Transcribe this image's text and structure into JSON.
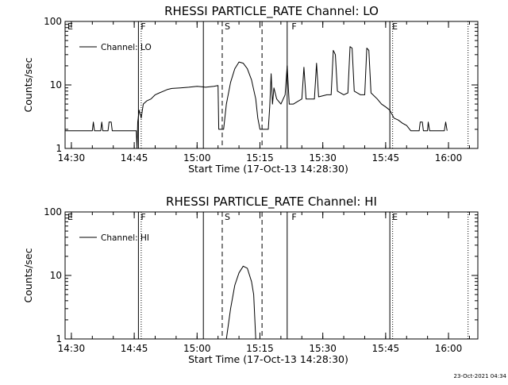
{
  "footer_timestamp": "23-Oct-2021 04:34",
  "chart_data": [
    {
      "type": "line",
      "title": "RHESSI PARTICLE_RATE Channel: LO",
      "xlabel": "Start Time (17-Oct-13 14:28:30)",
      "ylabel": "Counts/sec",
      "xlim": [
        "14:28:30",
        "16:07:00"
      ],
      "ylim": [
        1,
        100
      ],
      "yscale": "log",
      "x_ticks": [
        "14:30",
        "14:45",
        "15:00",
        "15:15",
        "15:30",
        "15:45",
        "16:00"
      ],
      "y_ticks": [
        "1",
        "10",
        "100"
      ],
      "legend": {
        "label": "Channel: LO",
        "position": "top-left"
      },
      "regions": [
        {
          "label": "E",
          "x": "14:28:30"
        },
        {
          "label": "F",
          "x": "14:46:00"
        },
        {
          "label": "S",
          "x": "15:06:00"
        },
        {
          "label": "F",
          "x": "15:22:00"
        },
        {
          "label": "E",
          "x": "15:46:00"
        }
      ],
      "vlines": [
        {
          "x": "14:46:00",
          "style": "solid"
        },
        {
          "x": "14:46:40",
          "style": "dotted"
        },
        {
          "x": "15:01:30",
          "style": "solid"
        },
        {
          "x": "15:06:00",
          "style": "dashed"
        },
        {
          "x": "15:15:30",
          "style": "dashed"
        },
        {
          "x": "15:21:30",
          "style": "solid"
        },
        {
          "x": "15:46:00",
          "style": "solid"
        },
        {
          "x": "15:46:40",
          "style": "dotted"
        },
        {
          "x": "16:04:40",
          "style": "dotted"
        }
      ],
      "series": [
        {
          "name": "Channel: LO",
          "points": [
            [
              "14:28:30",
              1.9
            ],
            [
              "14:35:00",
              1.9
            ],
            [
              "14:35:15",
              2.6
            ],
            [
              "14:35:30",
              1.9
            ],
            [
              "14:37:00",
              1.9
            ],
            [
              "14:37:15",
              2.6
            ],
            [
              "14:37:30",
              1.9
            ],
            [
              "14:38:45",
              1.9
            ],
            [
              "14:39:00",
              2.6
            ],
            [
              "14:39:30",
              2.6
            ],
            [
              "14:39:45",
              1.9
            ],
            [
              "14:45:30",
              1.9
            ],
            [
              "14:45:40",
              1.0
            ],
            [
              "14:45:50",
              2.6
            ],
            [
              "14:46:10",
              4.0
            ],
            [
              "14:46:40",
              3.0
            ],
            [
              "14:47:10",
              5.0
            ],
            [
              "14:48:00",
              5.6
            ],
            [
              "14:49:00",
              6.0
            ],
            [
              "14:50:00",
              7.0
            ],
            [
              "14:51:00",
              7.5
            ],
            [
              "14:52:00",
              8.0
            ],
            [
              "14:53:00",
              8.5
            ],
            [
              "14:54:00",
              8.8
            ],
            [
              "14:56:00",
              9.0
            ],
            [
              "14:58:00",
              9.2
            ],
            [
              "15:00:00",
              9.5
            ],
            [
              "15:01:30",
              9.3
            ],
            [
              "15:02:00",
              9.2
            ],
            [
              "15:04:00",
              9.5
            ],
            [
              "15:05:00",
              9.8
            ],
            [
              "15:05:10",
              2.0
            ],
            [
              "15:06:00",
              2.0
            ],
            [
              "15:06:20",
              2.0
            ],
            [
              "15:07:00",
              5.0
            ],
            [
              "15:08:00",
              11.0
            ],
            [
              "15:09:00",
              18.0
            ],
            [
              "15:10:00",
              23.0
            ],
            [
              "15:11:00",
              22.0
            ],
            [
              "15:12:00",
              18.0
            ],
            [
              "15:13:00",
              12.0
            ],
            [
              "15:14:00",
              6.0
            ],
            [
              "15:14:30",
              3.0
            ],
            [
              "15:15:00",
              2.0
            ],
            [
              "15:16:00",
              2.0
            ],
            [
              "15:17:00",
              2.0
            ],
            [
              "15:17:20",
              4.5
            ],
            [
              "15:17:40",
              15.0
            ],
            [
              "15:18:00",
              5.0
            ],
            [
              "15:18:20",
              9.0
            ],
            [
              "15:19:00",
              6.0
            ],
            [
              "15:20:00",
              5.0
            ],
            [
              "15:21:00",
              7.0
            ],
            [
              "15:21:30",
              20.0
            ],
            [
              "15:22:00",
              5.0
            ],
            [
              "15:23:00",
              5.0
            ],
            [
              "15:24:00",
              5.5
            ],
            [
              "15:25:00",
              6.0
            ],
            [
              "15:25:30",
              19.0
            ],
            [
              "15:26:00",
              6.0
            ],
            [
              "15:27:00",
              6.0
            ],
            [
              "15:28:00",
              6.0
            ],
            [
              "15:28:30",
              22.0
            ],
            [
              "15:29:00",
              6.5
            ],
            [
              "15:31:00",
              7.0
            ],
            [
              "15:32:00",
              7.0
            ],
            [
              "15:32:30",
              35.0
            ],
            [
              "15:33:00",
              30.0
            ],
            [
              "15:33:30",
              8.0
            ],
            [
              "15:35:00",
              7.0
            ],
            [
              "15:36:00",
              7.5
            ],
            [
              "15:36:30",
              40.0
            ],
            [
              "15:37:00",
              38.0
            ],
            [
              "15:37:30",
              8.0
            ],
            [
              "15:39:00",
              7.0
            ],
            [
              "15:40:00",
              7.0
            ],
            [
              "15:40:30",
              38.0
            ],
            [
              "15:41:00",
              35.0
            ],
            [
              "15:41:30",
              7.5
            ],
            [
              "15:43:00",
              6.0
            ],
            [
              "15:44:00",
              5.0
            ],
            [
              "15:45:00",
              4.5
            ],
            [
              "15:46:00",
              4.0
            ],
            [
              "15:47:00",
              3.0
            ],
            [
              "15:48:00",
              2.8
            ],
            [
              "15:49:00",
              2.5
            ],
            [
              "15:50:00",
              2.3
            ],
            [
              "15:51:00",
              1.9
            ],
            [
              "15:53:00",
              1.9
            ],
            [
              "15:53:15",
              2.6
            ],
            [
              "15:53:45",
              2.6
            ],
            [
              "15:54:00",
              1.9
            ],
            [
              "15:55:00",
              1.9
            ],
            [
              "15:55:10",
              2.6
            ],
            [
              "15:55:30",
              1.9
            ],
            [
              "15:59:00",
              1.9
            ],
            [
              "15:59:20",
              2.6
            ],
            [
              "15:59:40",
              1.9
            ]
          ]
        }
      ]
    },
    {
      "type": "line",
      "title": "RHESSI PARTICLE_RATE Channel: HI",
      "xlabel": "Start Time (17-Oct-13 14:28:30)",
      "ylabel": "Counts/sec",
      "xlim": [
        "14:28:30",
        "16:07:00"
      ],
      "ylim": [
        1,
        100
      ],
      "yscale": "log",
      "x_ticks": [
        "14:30",
        "14:45",
        "15:00",
        "15:15",
        "15:30",
        "15:45",
        "16:00"
      ],
      "y_ticks": [
        "1",
        "10",
        "100"
      ],
      "legend": {
        "label": "Channel: HI",
        "position": "top-left"
      },
      "regions": [
        {
          "label": "E",
          "x": "14:28:30"
        },
        {
          "label": "F",
          "x": "14:46:00"
        },
        {
          "label": "S",
          "x": "15:06:00"
        },
        {
          "label": "F",
          "x": "15:22:00"
        },
        {
          "label": "E",
          "x": "15:46:00"
        }
      ],
      "vlines": [
        {
          "x": "14:46:00",
          "style": "solid"
        },
        {
          "x": "14:46:40",
          "style": "dotted"
        },
        {
          "x": "15:01:30",
          "style": "solid"
        },
        {
          "x": "15:06:00",
          "style": "dashed"
        },
        {
          "x": "15:15:30",
          "style": "dashed"
        },
        {
          "x": "15:21:30",
          "style": "solid"
        },
        {
          "x": "15:46:00",
          "style": "solid"
        },
        {
          "x": "15:46:40",
          "style": "dotted"
        },
        {
          "x": "16:04:40",
          "style": "dotted"
        }
      ],
      "series": [
        {
          "name": "Channel: HI",
          "points": [
            [
              "15:07:00",
              1.0
            ],
            [
              "15:08:00",
              3.0
            ],
            [
              "15:09:00",
              7.0
            ],
            [
              "15:10:00",
              11.0
            ],
            [
              "15:11:00",
              14.0
            ],
            [
              "15:12:00",
              13.0
            ],
            [
              "15:13:00",
              8.0
            ],
            [
              "15:13:30",
              5.0
            ],
            [
              "15:14:00",
              1.0
            ]
          ]
        }
      ]
    }
  ]
}
